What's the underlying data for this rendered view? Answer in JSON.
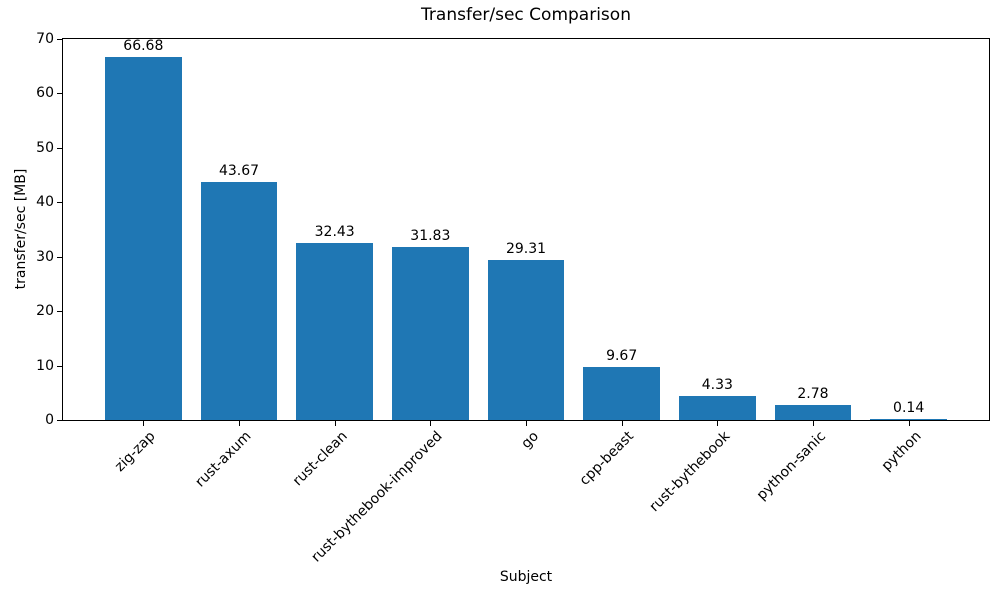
{
  "chart_data": {
    "type": "bar",
    "title": "Transfer/sec Comparison",
    "xlabel": "Subject",
    "ylabel": "transfer/sec [MB]",
    "categories": [
      "zig-zap",
      "rust-axum",
      "rust-clean",
      "rust-bythebook-improved",
      "go",
      "cpp-beast",
      "rust-bythebook",
      "python-sanic",
      "python"
    ],
    "values": [
      66.68,
      43.67,
      32.43,
      31.83,
      29.31,
      9.67,
      4.33,
      2.78,
      0.14
    ],
    "value_labels": [
      "66.68",
      "43.67",
      "32.43",
      "31.83",
      "29.31",
      "9.67",
      "4.33",
      "2.78",
      "0.14"
    ],
    "ylim": [
      0,
      70
    ],
    "yticks": [
      0,
      10,
      20,
      30,
      40,
      50,
      60,
      70
    ],
    "bar_color": "#1f77b4",
    "grid": false,
    "legend": null,
    "xtick_rotation_deg": 45
  }
}
